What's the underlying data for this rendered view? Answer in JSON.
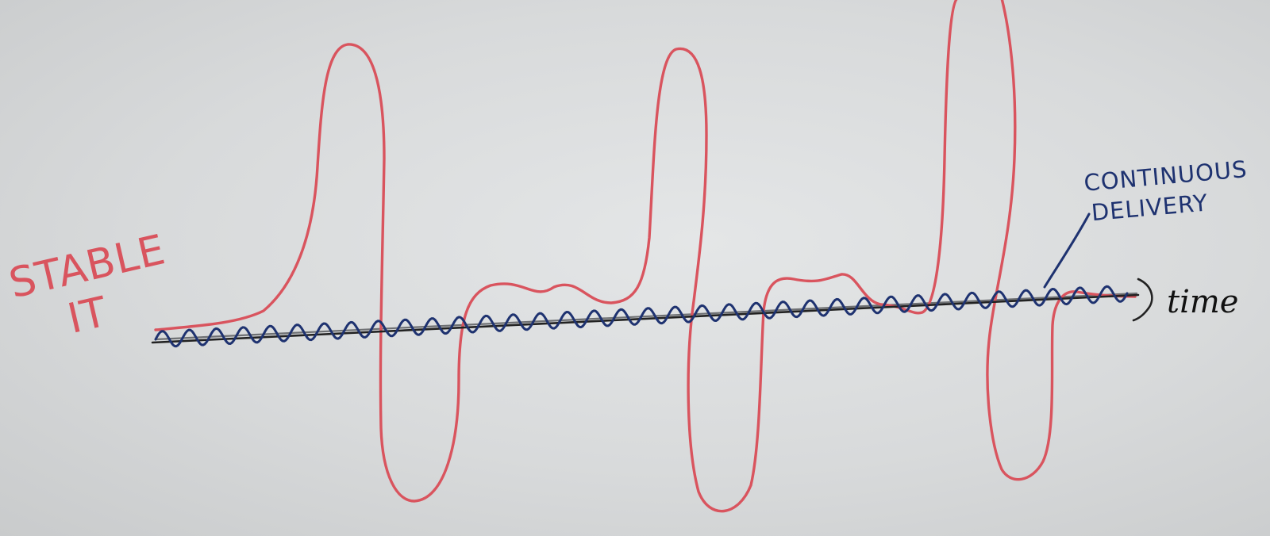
{
  "labels": {
    "stable_line1": "STABLE",
    "stable_line2": "IT",
    "cd_line1": "CONTINUOUS",
    "cd_line2": "DELIVERY",
    "time": "time"
  },
  "colors": {
    "stable_curve": "#d9545e",
    "cd_curve": "#1e3270",
    "axis": "#222222",
    "board": "#dcdedf"
  }
}
